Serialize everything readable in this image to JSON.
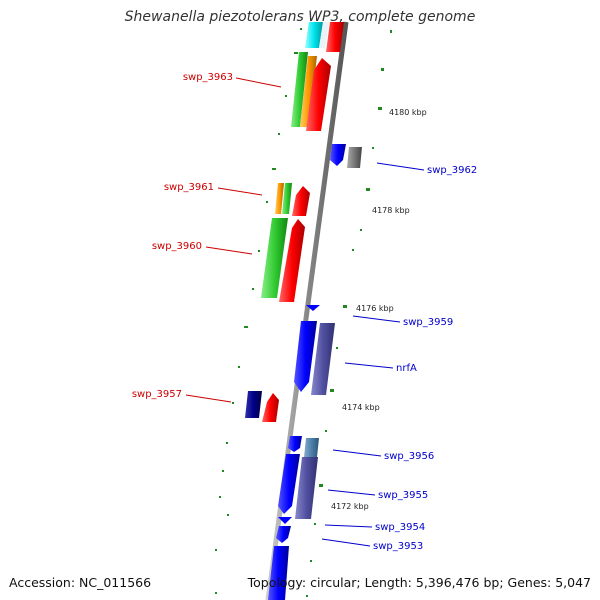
{
  "title": "Shewanella piezotolerans WP3, complete genome",
  "accession": "Accession: NC_011566",
  "summary": "Topology: circular; Length: 5,396,476 bp; Genes: 5,047",
  "colors": {
    "label_left": "#cc0000",
    "label_right": "#0000cc",
    "tick_mark": "#228822",
    "backbone": "#888888",
    "red": "#ff0000",
    "green": "#33cc33",
    "orange": "#ff9900",
    "blue": "#0000ff",
    "slate": "#5050a0",
    "navy": "#000088",
    "gray": "#777777",
    "cyan": "#00e5ee",
    "steel": "#4d7faa"
  },
  "kbp_ticks": [
    "4180 kbp",
    "4178 kbp",
    "4176 kbp",
    "4174 kbp",
    "4172 kbp"
  ],
  "left_labels": [
    "swp_3963",
    "swp_3961",
    "swp_3960",
    "swp_3957"
  ],
  "right_labels": [
    "swp_3962",
    "swp_3959",
    "nrfA",
    "swp_3956",
    "swp_3955",
    "swp_3954",
    "swp_3953"
  ]
}
